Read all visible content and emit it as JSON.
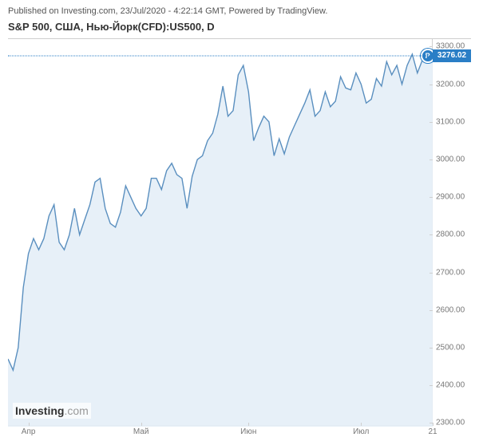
{
  "header": {
    "published_prefix": "Published on ",
    "site": "Investing.com",
    "date": "23/Jul/2020",
    "time": "4:22:14 GMT",
    "powered": "Powered by TradingView."
  },
  "title": "S&P 500, США, Нью-Йорк(CFD):US500, D",
  "logo": {
    "main": "Investing",
    "suffix": ".com"
  },
  "chart": {
    "type": "area",
    "line_color": "#5a8fbf",
    "fill_color": "#e4eef7",
    "fill_opacity": 0.9,
    "background_color": "#ffffff",
    "axis_color": "#cfcfcf",
    "label_color": "#777777",
    "label_fontsize": 10,
    "y": {
      "min": 2290,
      "max": 3320,
      "ticks": [
        2300,
        2400,
        2500,
        2600,
        2700,
        2800,
        2900,
        3000,
        3100,
        3200,
        3300
      ]
    },
    "x": {
      "min": 0,
      "max": 83,
      "ticks": [
        {
          "pos": 4,
          "label": "Апр"
        },
        {
          "pos": 26,
          "label": "Май"
        },
        {
          "pos": 47,
          "label": "Июн"
        },
        {
          "pos": 69,
          "label": "Июл"
        },
        {
          "pos": 83,
          "label": "21"
        }
      ]
    },
    "last": {
      "value": 3276.02,
      "text": "3276.02",
      "marker": "P",
      "marker_x": 82
    },
    "series": [
      2470,
      2440,
      2500,
      2660,
      2750,
      2790,
      2760,
      2790,
      2850,
      2880,
      2780,
      2760,
      2800,
      2870,
      2800,
      2840,
      2880,
      2940,
      2950,
      2870,
      2830,
      2820,
      2860,
      2930,
      2900,
      2870,
      2850,
      2870,
      2950,
      2950,
      2920,
      2970,
      2990,
      2960,
      2950,
      2870,
      2955,
      3000,
      3010,
      3050,
      3070,
      3120,
      3195,
      3115,
      3130,
      3225,
      3250,
      3180,
      3050,
      3085,
      3115,
      3100,
      3010,
      3055,
      3015,
      3060,
      3090,
      3120,
      3150,
      3185,
      3115,
      3130,
      3180,
      3140,
      3155,
      3220,
      3190,
      3185,
      3230,
      3200,
      3150,
      3160,
      3215,
      3195,
      3260,
      3225,
      3250,
      3200,
      3250,
      3280,
      3230,
      3265,
      3280,
      3276
    ]
  }
}
